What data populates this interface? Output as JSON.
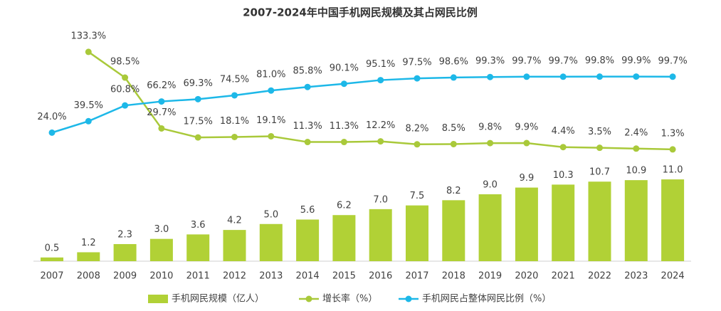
{
  "chart_data": {
    "type": "bar",
    "title": "2007-2024年中国手机网民规模及其占网民比例",
    "categories": [
      "2007",
      "2008",
      "2009",
      "2010",
      "2011",
      "2012",
      "2013",
      "2014",
      "2015",
      "2016",
      "2017",
      "2018",
      "2019",
      "2020",
      "2021",
      "2022",
      "2023",
      "2024"
    ],
    "ylim": [
      0,
      31.3
    ],
    "y2lim": [
      -150,
      165
    ],
    "series": [
      {
        "name": "手机网民规模（亿人）",
        "type": "bar",
        "color": "#b1d136",
        "values": [
          0.5,
          1.2,
          2.3,
          3.0,
          3.6,
          4.2,
          5.0,
          5.6,
          6.2,
          7.0,
          7.5,
          8.2,
          9.0,
          9.9,
          10.3,
          10.7,
          10.9,
          11.0
        ],
        "value_labels": [
          "0.5",
          "1.2",
          "2.3",
          "3.0",
          "3.6",
          "4.2",
          "5.0",
          "5.6",
          "6.2",
          "7.0",
          "7.5",
          "8.2",
          "9.0",
          "9.9",
          "10.3",
          "10.7",
          "10.9",
          "11.0"
        ]
      },
      {
        "name": "增长率（%）",
        "type": "line",
        "axis": "y2",
        "color": "#a9c93a",
        "values": [
          null,
          133.3,
          98.5,
          29.7,
          17.5,
          18.1,
          19.1,
          11.3,
          11.3,
          12.2,
          8.2,
          8.5,
          9.8,
          9.9,
          4.4,
          3.5,
          2.4,
          1.3
        ],
        "value_labels": [
          null,
          "133.3%",
          "98.5%",
          "29.7%",
          "17.5%",
          "18.1%",
          "19.1%",
          "11.3%",
          "11.3%",
          "12.2%",
          "8.2%",
          "8.5%",
          "9.8%",
          "9.9%",
          "4.4%",
          "3.5%",
          "2.4%",
          "1.3%"
        ]
      },
      {
        "name": "手机网民占整体网民比例（%）",
        "type": "line",
        "axis": "y2",
        "color": "#1db8e8",
        "values": [
          24.0,
          39.5,
          60.8,
          66.2,
          69.3,
          74.5,
          81.0,
          85.8,
          90.1,
          95.1,
          97.5,
          98.6,
          99.3,
          99.7,
          99.7,
          99.8,
          99.9,
          99.7
        ],
        "value_labels": [
          "24.0%",
          "39.5%",
          "60.8%",
          "66.2%",
          "69.3%",
          "74.5%",
          "81.0%",
          "85.8%",
          "90.1%",
          "95.1%",
          "97.5%",
          "98.6%",
          "99.3%",
          "99.7%",
          "99.7%",
          "99.8%",
          "99.9%",
          "99.7%"
        ]
      }
    ]
  }
}
